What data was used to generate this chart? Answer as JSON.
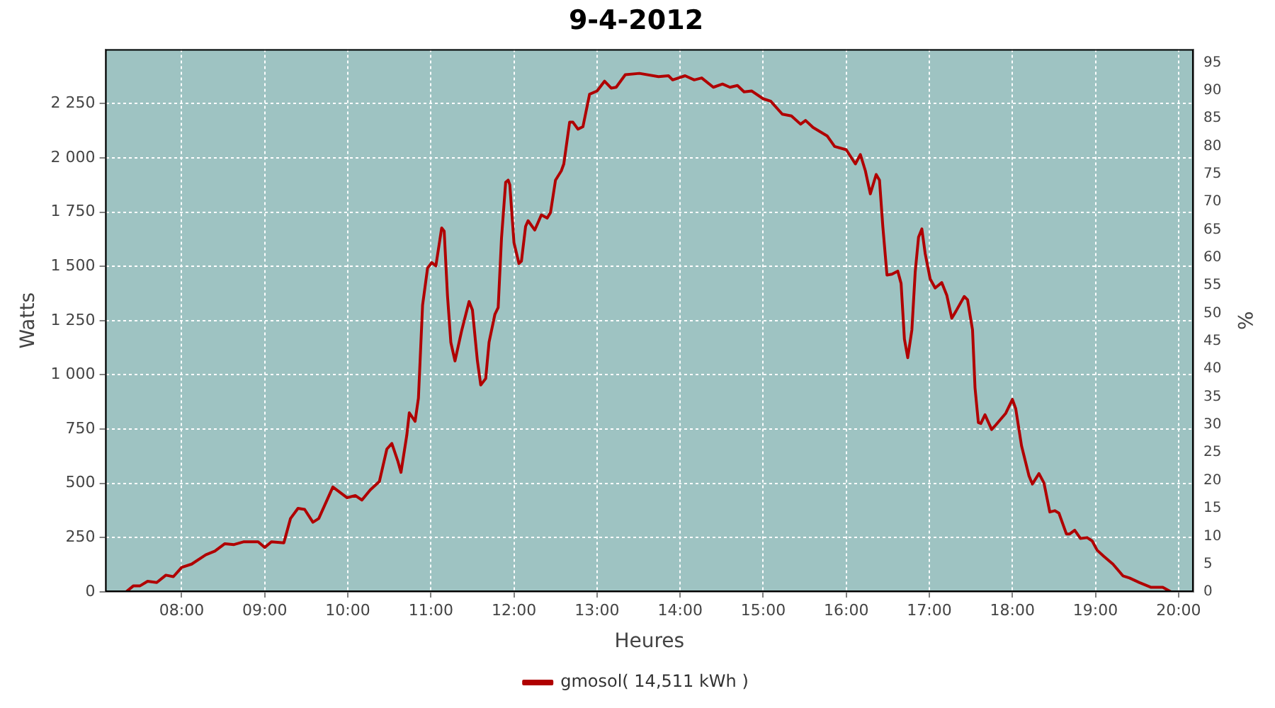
{
  "chart_data": {
    "type": "line",
    "title": "9-4-2012",
    "xlabel": "Heures",
    "ylabel": "Watts",
    "y2label": "%",
    "xlim": [
      7.08,
      20.18
    ],
    "xticks": [
      {
        "value": 8,
        "label": "08:00"
      },
      {
        "value": 9,
        "label": "09:00"
      },
      {
        "value": 10,
        "label": "10:00"
      },
      {
        "value": 11,
        "label": "11:00"
      },
      {
        "value": 12,
        "label": "12:00"
      },
      {
        "value": 13,
        "label": "13:00"
      },
      {
        "value": 14,
        "label": "14:00"
      },
      {
        "value": 15,
        "label": "15:00"
      },
      {
        "value": 16,
        "label": "16:00"
      },
      {
        "value": 17,
        "label": "17:00"
      },
      {
        "value": 18,
        "label": "18:00"
      },
      {
        "value": 19,
        "label": "19:00"
      },
      {
        "value": 20,
        "label": "20:00"
      }
    ],
    "ylim": [
      0,
      2500
    ],
    "yticks": [
      0,
      250,
      500,
      750,
      {
        "value": 1000,
        "label": "1 000"
      },
      {
        "value": 1250,
        "label": "1 250"
      },
      {
        "value": 1500,
        "label": "1 500"
      },
      {
        "value": 1750,
        "label": "1 750"
      },
      {
        "value": 2000,
        "label": "2 000"
      },
      {
        "value": 2250,
        "label": "2 250"
      }
    ],
    "y2lim": [
      0,
      97.4
    ],
    "y2ticks": [
      0,
      5,
      10,
      15,
      20,
      25,
      30,
      35,
      40,
      45,
      50,
      55,
      60,
      65,
      70,
      75,
      80,
      85,
      90,
      95
    ],
    "grid": true,
    "legend": "bottom",
    "marker": "none",
    "line_style": "solid",
    "series": [
      {
        "name": "gmosol( 14,511 kWh )",
        "color": "#b00000",
        "x": [
          7.33,
          7.42,
          7.5,
          7.59,
          7.7,
          7.81,
          7.9,
          8.0,
          8.12,
          8.29,
          8.4,
          8.52,
          8.63,
          8.75,
          8.92,
          9.0,
          9.08,
          9.23,
          9.31,
          9.4,
          9.48,
          9.58,
          9.65,
          9.82,
          9.99,
          10.09,
          10.17,
          10.27,
          10.38,
          10.47,
          10.53,
          10.6,
          10.64,
          10.71,
          10.74,
          10.81,
          10.85,
          10.9,
          10.96,
          11.01,
          11.06,
          11.13,
          11.16,
          11.2,
          11.24,
          11.29,
          11.37,
          11.46,
          11.5,
          11.56,
          11.6,
          11.66,
          11.7,
          11.77,
          11.81,
          11.85,
          11.9,
          11.93,
          11.95,
          12.0,
          12.06,
          12.09,
          12.14,
          12.17,
          12.25,
          12.33,
          12.4,
          12.44,
          12.5,
          12.57,
          12.6,
          12.67,
          12.71,
          12.77,
          12.83,
          12.91,
          13.0,
          13.09,
          13.17,
          13.23,
          13.34,
          13.51,
          13.74,
          13.86,
          13.91,
          14.06,
          14.17,
          14.26,
          14.4,
          14.51,
          14.6,
          14.69,
          14.77,
          14.86,
          15.0,
          15.09,
          15.23,
          15.34,
          15.45,
          15.51,
          15.6,
          15.77,
          15.86,
          16.0,
          16.11,
          16.17,
          16.23,
          16.29,
          16.36,
          16.4,
          16.44,
          16.49,
          16.55,
          16.62,
          16.66,
          16.7,
          16.74,
          16.79,
          16.83,
          16.87,
          16.91,
          16.95,
          17.01,
          17.07,
          17.15,
          17.21,
          17.27,
          17.32,
          17.42,
          17.46,
          17.52,
          17.55,
          17.59,
          17.62,
          17.67,
          17.75,
          17.8,
          17.92,
          18.0,
          18.04,
          18.11,
          18.2,
          18.24,
          18.32,
          18.38,
          18.45,
          18.51,
          18.56,
          18.65,
          18.69,
          18.75,
          18.82,
          18.9,
          18.96,
          19.02,
          19.1,
          19.21,
          19.33,
          19.41,
          19.53,
          19.67,
          19.81,
          19.91
        ],
        "values": [
          0,
          28,
          28,
          49,
          43,
          77,
          70,
          113,
          128,
          171,
          188,
          222,
          218,
          231,
          231,
          205,
          231,
          226,
          338,
          385,
          380,
          321,
          338,
          483,
          434,
          444,
          423,
          470,
          509,
          658,
          684,
          605,
          551,
          722,
          825,
          786,
          893,
          1321,
          1492,
          1517,
          1502,
          1677,
          1662,
          1363,
          1150,
          1064,
          1203,
          1338,
          1299,
          1064,
          953,
          983,
          1150,
          1278,
          1310,
          1630,
          1887,
          1897,
          1876,
          1609,
          1513,
          1524,
          1684,
          1710,
          1667,
          1737,
          1722,
          1748,
          1897,
          1940,
          1972,
          2164,
          2164,
          2132,
          2143,
          2293,
          2308,
          2353,
          2321,
          2325,
          2383,
          2389,
          2374,
          2378,
          2359,
          2378,
          2359,
          2368,
          2325,
          2340,
          2325,
          2333,
          2304,
          2308,
          2272,
          2261,
          2201,
          2193,
          2155,
          2172,
          2140,
          2101,
          2052,
          2037,
          1972,
          2015,
          1940,
          1834,
          1923,
          1897,
          1684,
          1460,
          1464,
          1478,
          1421,
          1165,
          1079,
          1207,
          1474,
          1634,
          1672,
          1559,
          1442,
          1400,
          1425,
          1367,
          1261,
          1293,
          1361,
          1346,
          1207,
          940,
          780,
          776,
          816,
          748,
          769,
          823,
          887,
          844,
          673,
          534,
          497,
          545,
          502,
          368,
          374,
          363,
          267,
          267,
          284,
          246,
          250,
          235,
          192,
          164,
          128,
          74,
          64,
          43,
          21,
          21,
          0
        ]
      }
    ]
  }
}
